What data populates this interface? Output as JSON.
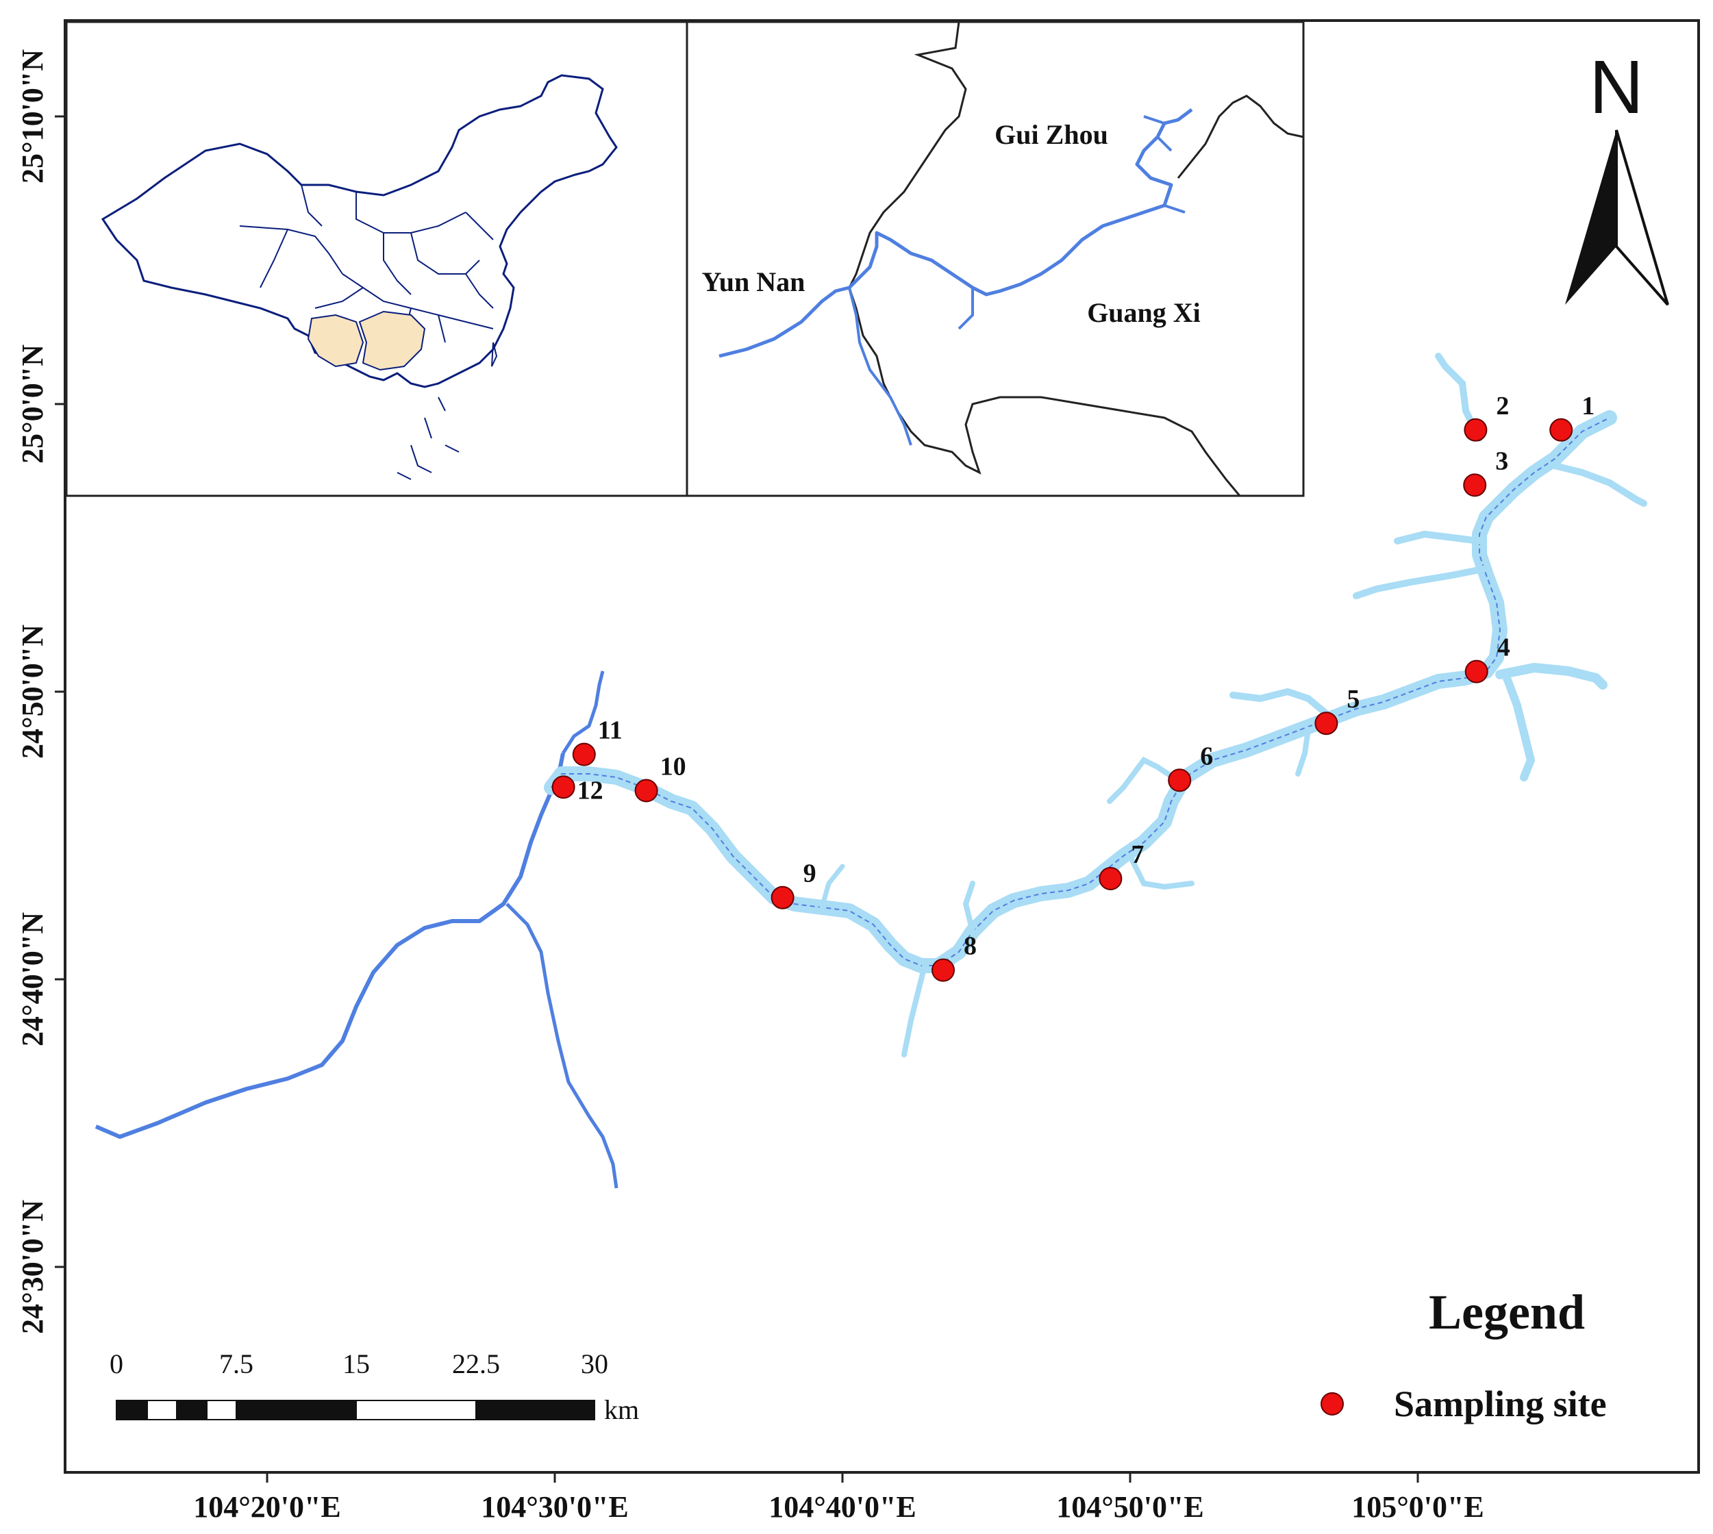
{
  "axes": {
    "x_ticks": [
      "104°20'0\"E",
      "104°30'0\"E",
      "104°40'0\"E",
      "104°50'0\"E",
      "105°0'0\"E"
    ],
    "y_ticks": [
      "25°10'0\"N",
      "25°0'0\"N",
      "24°50'0\"N",
      "24°40'0\"N",
      "24°30'0\"N"
    ]
  },
  "north_arrow": {
    "label": "N"
  },
  "inset_region": {
    "labels": {
      "guizhou": "Gui Zhou",
      "yunnan": "Yun Nan",
      "guangxi": "Guang Xi"
    }
  },
  "inset_china": {
    "highlight_color": "#f9e4c0"
  },
  "sites": [
    {
      "id": "1",
      "lon": 105.083,
      "lat": 24.985
    },
    {
      "id": "2",
      "lon": 105.0335,
      "lat": 24.985
    },
    {
      "id": "3",
      "lon": 105.033,
      "lat": 24.953
    },
    {
      "id": "4",
      "lon": 105.034,
      "lat": 24.845
    },
    {
      "id": "5",
      "lon": 104.947,
      "lat": 24.815
    },
    {
      "id": "6",
      "lon": 104.862,
      "lat": 24.782
    },
    {
      "id": "7",
      "lon": 104.822,
      "lat": 24.725
    },
    {
      "id": "8",
      "lon": 104.725,
      "lat": 24.672
    },
    {
      "id": "9",
      "lon": 104.632,
      "lat": 24.714
    },
    {
      "id": "10",
      "lon": 104.553,
      "lat": 24.776
    },
    {
      "id": "11",
      "lon": 104.517,
      "lat": 24.797
    },
    {
      "id": "12",
      "lon": 104.505,
      "lat": 24.778
    }
  ],
  "legend": {
    "title": "Legend",
    "item": "Sampling site"
  },
  "scale_bar": {
    "labels": [
      "0",
      "7.5",
      "15",
      "22.5",
      "30"
    ],
    "unit": "km"
  },
  "colors": {
    "water_fill": "#a9dcf5",
    "water_outline": "#4f7fe0",
    "site_marker": "#ee1111",
    "border": "#222222",
    "china_outline": "#0a1e7c"
  }
}
